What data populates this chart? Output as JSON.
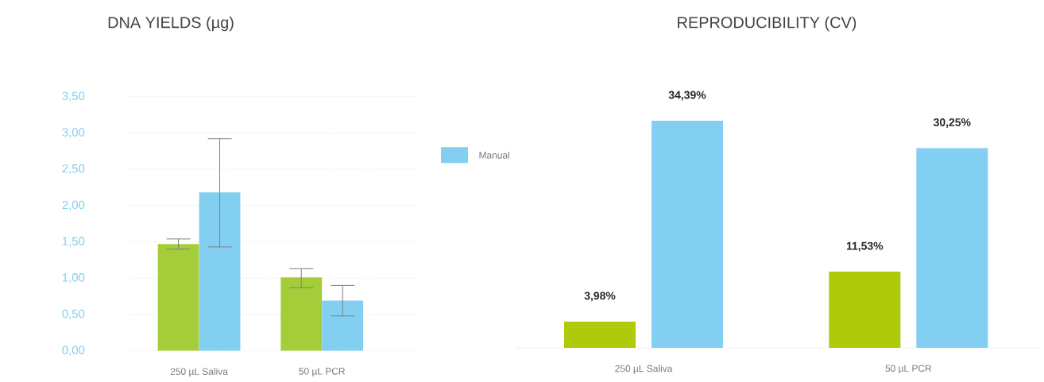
{
  "chart_data": [
    {
      "type": "bar",
      "title": "DNA YIELDS (µg)",
      "categories": [
        "250 µL Saliva",
        "50 µL PCR"
      ],
      "series": [
        {
          "color": "#a5cd39",
          "values": [
            1.47,
            1.01
          ],
          "errors": [
            [
              1.4,
              1.54
            ],
            [
              0.87,
              1.13
            ]
          ]
        },
        {
          "color": "#82cff2",
          "values": [
            2.18,
            0.69
          ],
          "errors": [
            [
              1.43,
              2.92
            ],
            [
              0.48,
              0.9
            ]
          ]
        }
      ],
      "ylim": [
        0,
        3.5
      ],
      "yticks": [
        {
          "value": 0,
          "label": "0,00"
        },
        {
          "value": 0.5,
          "label": "0,50"
        },
        {
          "value": 1,
          "label": "1,00"
        },
        {
          "value": 1.5,
          "label": "1,50"
        },
        {
          "value": 2,
          "label": "2,00"
        },
        {
          "value": 2.5,
          "label": "2,50"
        },
        {
          "value": 3,
          "label": "3,00"
        },
        {
          "value": 3.5,
          "label": "3,50"
        }
      ],
      "grid": "y"
    },
    {
      "type": "bar",
      "title": "REPRODUCIBILITY (CV)",
      "categories": [
        "250 µL Saliva",
        "50 µL PCR"
      ],
      "series": [
        {
          "color": "#afca0b",
          "values": [
            3.98,
            11.53
          ],
          "value_labels": [
            "3,98%",
            "11,53%"
          ]
        },
        {
          "name": "Manual",
          "color": "#82cff2",
          "values": [
            34.39,
            30.25
          ],
          "value_labels": [
            "34,39%",
            "30,25%"
          ]
        }
      ],
      "legend": "left"
    }
  ]
}
